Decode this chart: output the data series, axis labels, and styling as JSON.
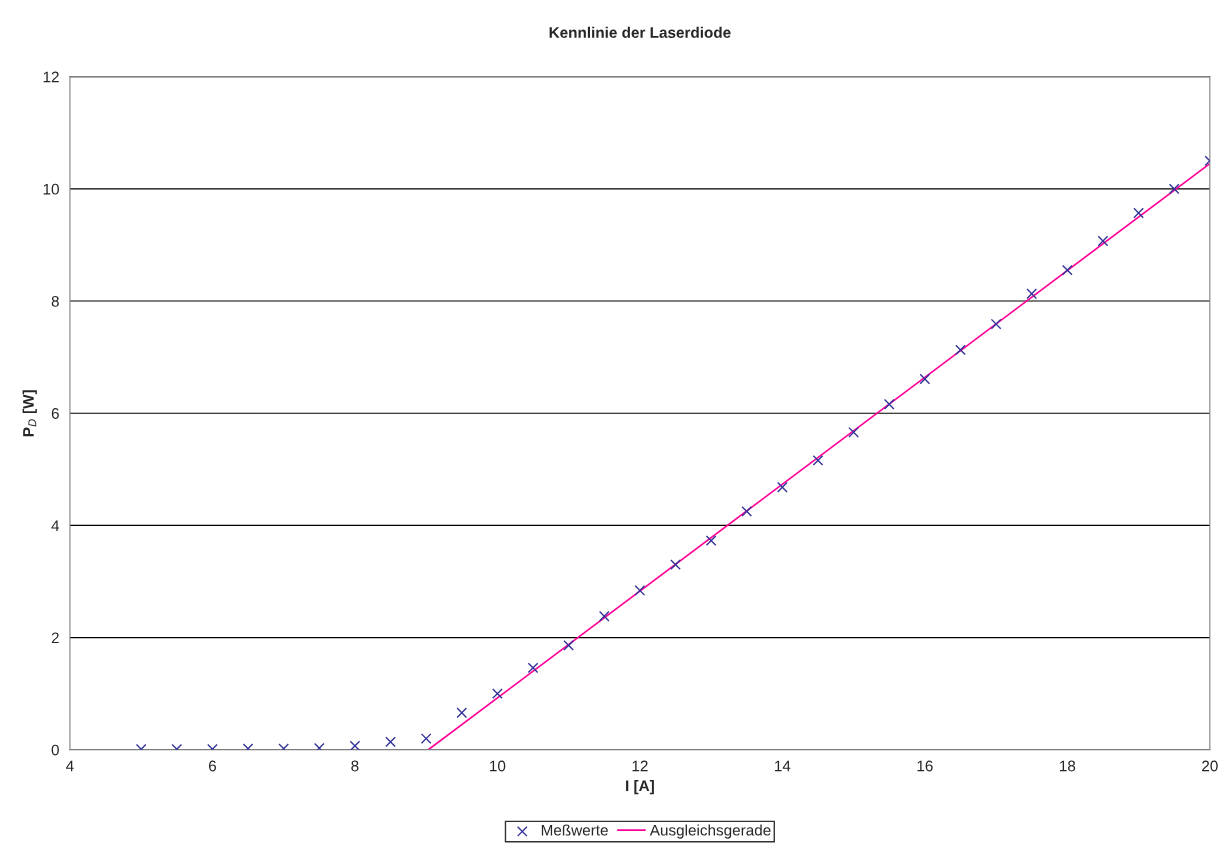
{
  "chart_data": {
    "type": "scatter",
    "title": "Kennlinie der Laserdiode",
    "xlabel": "I [A]",
    "ylabel": "P$_{D}$ [W]",
    "xlim": [
      4,
      20
    ],
    "xticks": [
      4,
      6,
      8,
      10,
      12,
      14,
      16,
      18,
      20
    ],
    "ylim": [
      0,
      12
    ],
    "yticks": [
      0,
      2,
      4,
      6,
      8,
      10,
      12
    ],
    "grid": "y",
    "legend": "bottom",
    "series": [
      {
        "name": "Meßwerte",
        "marker": "cross",
        "color": "#333399",
        "x": [
          5,
          5.5,
          6,
          6.5,
          7,
          7.5,
          8,
          8.5,
          9,
          9.5,
          10,
          10.5,
          11,
          11.5,
          12,
          12.5,
          13,
          13.5,
          14,
          14.5,
          15,
          15.5,
          16,
          16.5,
          17,
          17.5,
          18,
          18.5,
          19,
          19.5,
          20
        ],
        "values": [
          0.01,
          0.01,
          0.01,
          0.02,
          0.02,
          0.03,
          0.07,
          0.14,
          0.2,
          0.66,
          1.0,
          1.46,
          1.86,
          2.38,
          2.84,
          3.3,
          3.73,
          4.25,
          4.68,
          5.16,
          5.66,
          6.16,
          6.61,
          7.13,
          7.59,
          8.13,
          8.55,
          9.07,
          9.57,
          10.0,
          10.5
        ]
      },
      {
        "name": "Ausgleichsgerade",
        "type": "line",
        "marker": "none",
        "color": "#ff0099",
        "x": [
          9.03,
          20
        ],
        "values": [
          0,
          10.45
        ]
      }
    ]
  }
}
